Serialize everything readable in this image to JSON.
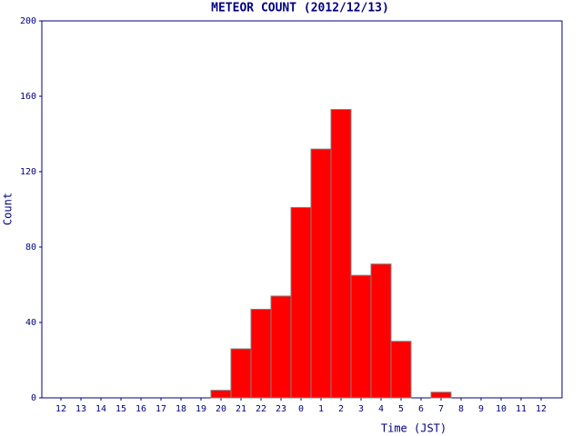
{
  "chart_data": {
    "type": "bar",
    "title": "METEOR COUNT (2012/12/13)",
    "x_label": "Time (JST)",
    "y_label": "Count",
    "categories": [
      "12",
      "13",
      "14",
      "15",
      "16",
      "17",
      "18",
      "19",
      "20",
      "21",
      "22",
      "23",
      "0",
      "1",
      "2",
      "3",
      "4",
      "5",
      "6",
      "7",
      "8",
      "9",
      "10",
      "11",
      "12"
    ],
    "values": [
      0,
      0,
      0,
      0,
      0,
      0,
      0,
      0,
      4,
      26,
      47,
      54,
      101,
      132,
      153,
      65,
      71,
      30,
      0,
      3,
      0,
      0,
      0,
      0,
      0
    ],
    "color": "#ff0000",
    "ylim": [
      0,
      200
    ],
    "yticks": [
      0,
      40,
      80,
      120,
      160,
      200
    ],
    "grid": false
  }
}
